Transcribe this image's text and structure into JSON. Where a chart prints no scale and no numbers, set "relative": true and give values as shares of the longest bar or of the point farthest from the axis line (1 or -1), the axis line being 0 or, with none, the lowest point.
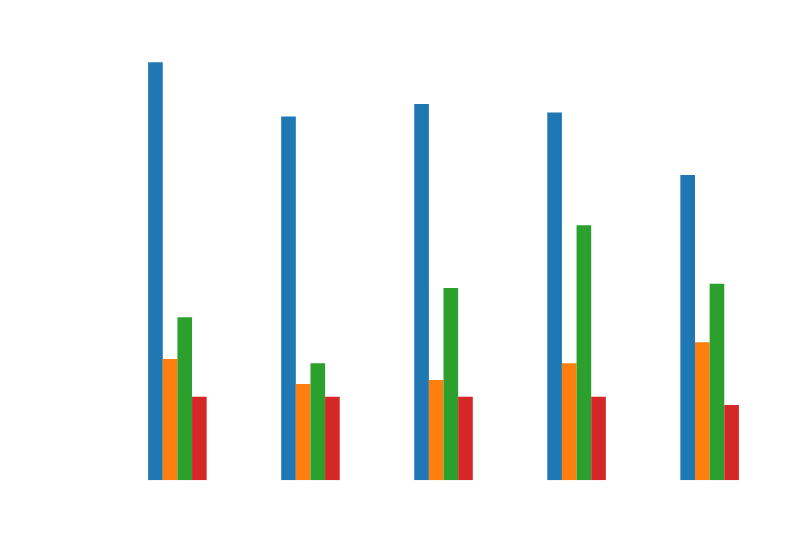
{
  "chart_data": {
    "type": "bar",
    "relative": true,
    "categories": [
      null,
      null,
      null,
      null,
      null
    ],
    "series": [
      {
        "color": "#1f77b4",
        "values": [
          1,
          0.87,
          0.9,
          0.88,
          0.73
        ]
      },
      {
        "color": "#ff7f0e",
        "values": [
          0.29,
          0.23,
          0.24,
          0.28,
          0.33
        ]
      },
      {
        "color": "#2ca02c",
        "values": [
          0.39,
          0.28,
          0.46,
          0.61,
          0.47
        ]
      },
      {
        "color": "#d62728",
        "values": [
          0.2,
          0.2,
          0.2,
          0.2,
          0.18
        ]
      }
    ],
    "grid": false,
    "legend": false
  }
}
